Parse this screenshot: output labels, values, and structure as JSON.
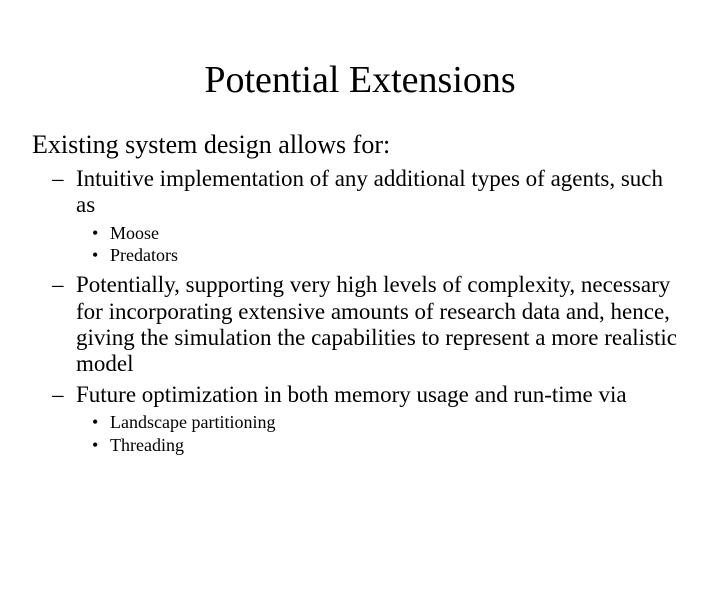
{
  "title": "Potential Extensions",
  "intro": "Existing system design allows for:",
  "items": [
    {
      "text": "Intuitive implementation of any additional types of agents, such as",
      "sub": [
        "Moose",
        "Predators"
      ]
    },
    {
      "text": "Potentially, supporting very high levels of complexity, necessary for incorporating extensive amounts of research data and, hence, giving the simulation the capabilities to represent a more realistic model",
      "sub": []
    },
    {
      "text": "Future optimization in both memory usage and run-time via",
      "sub": [
        "Landscape partitioning",
        "Threading"
      ]
    }
  ]
}
